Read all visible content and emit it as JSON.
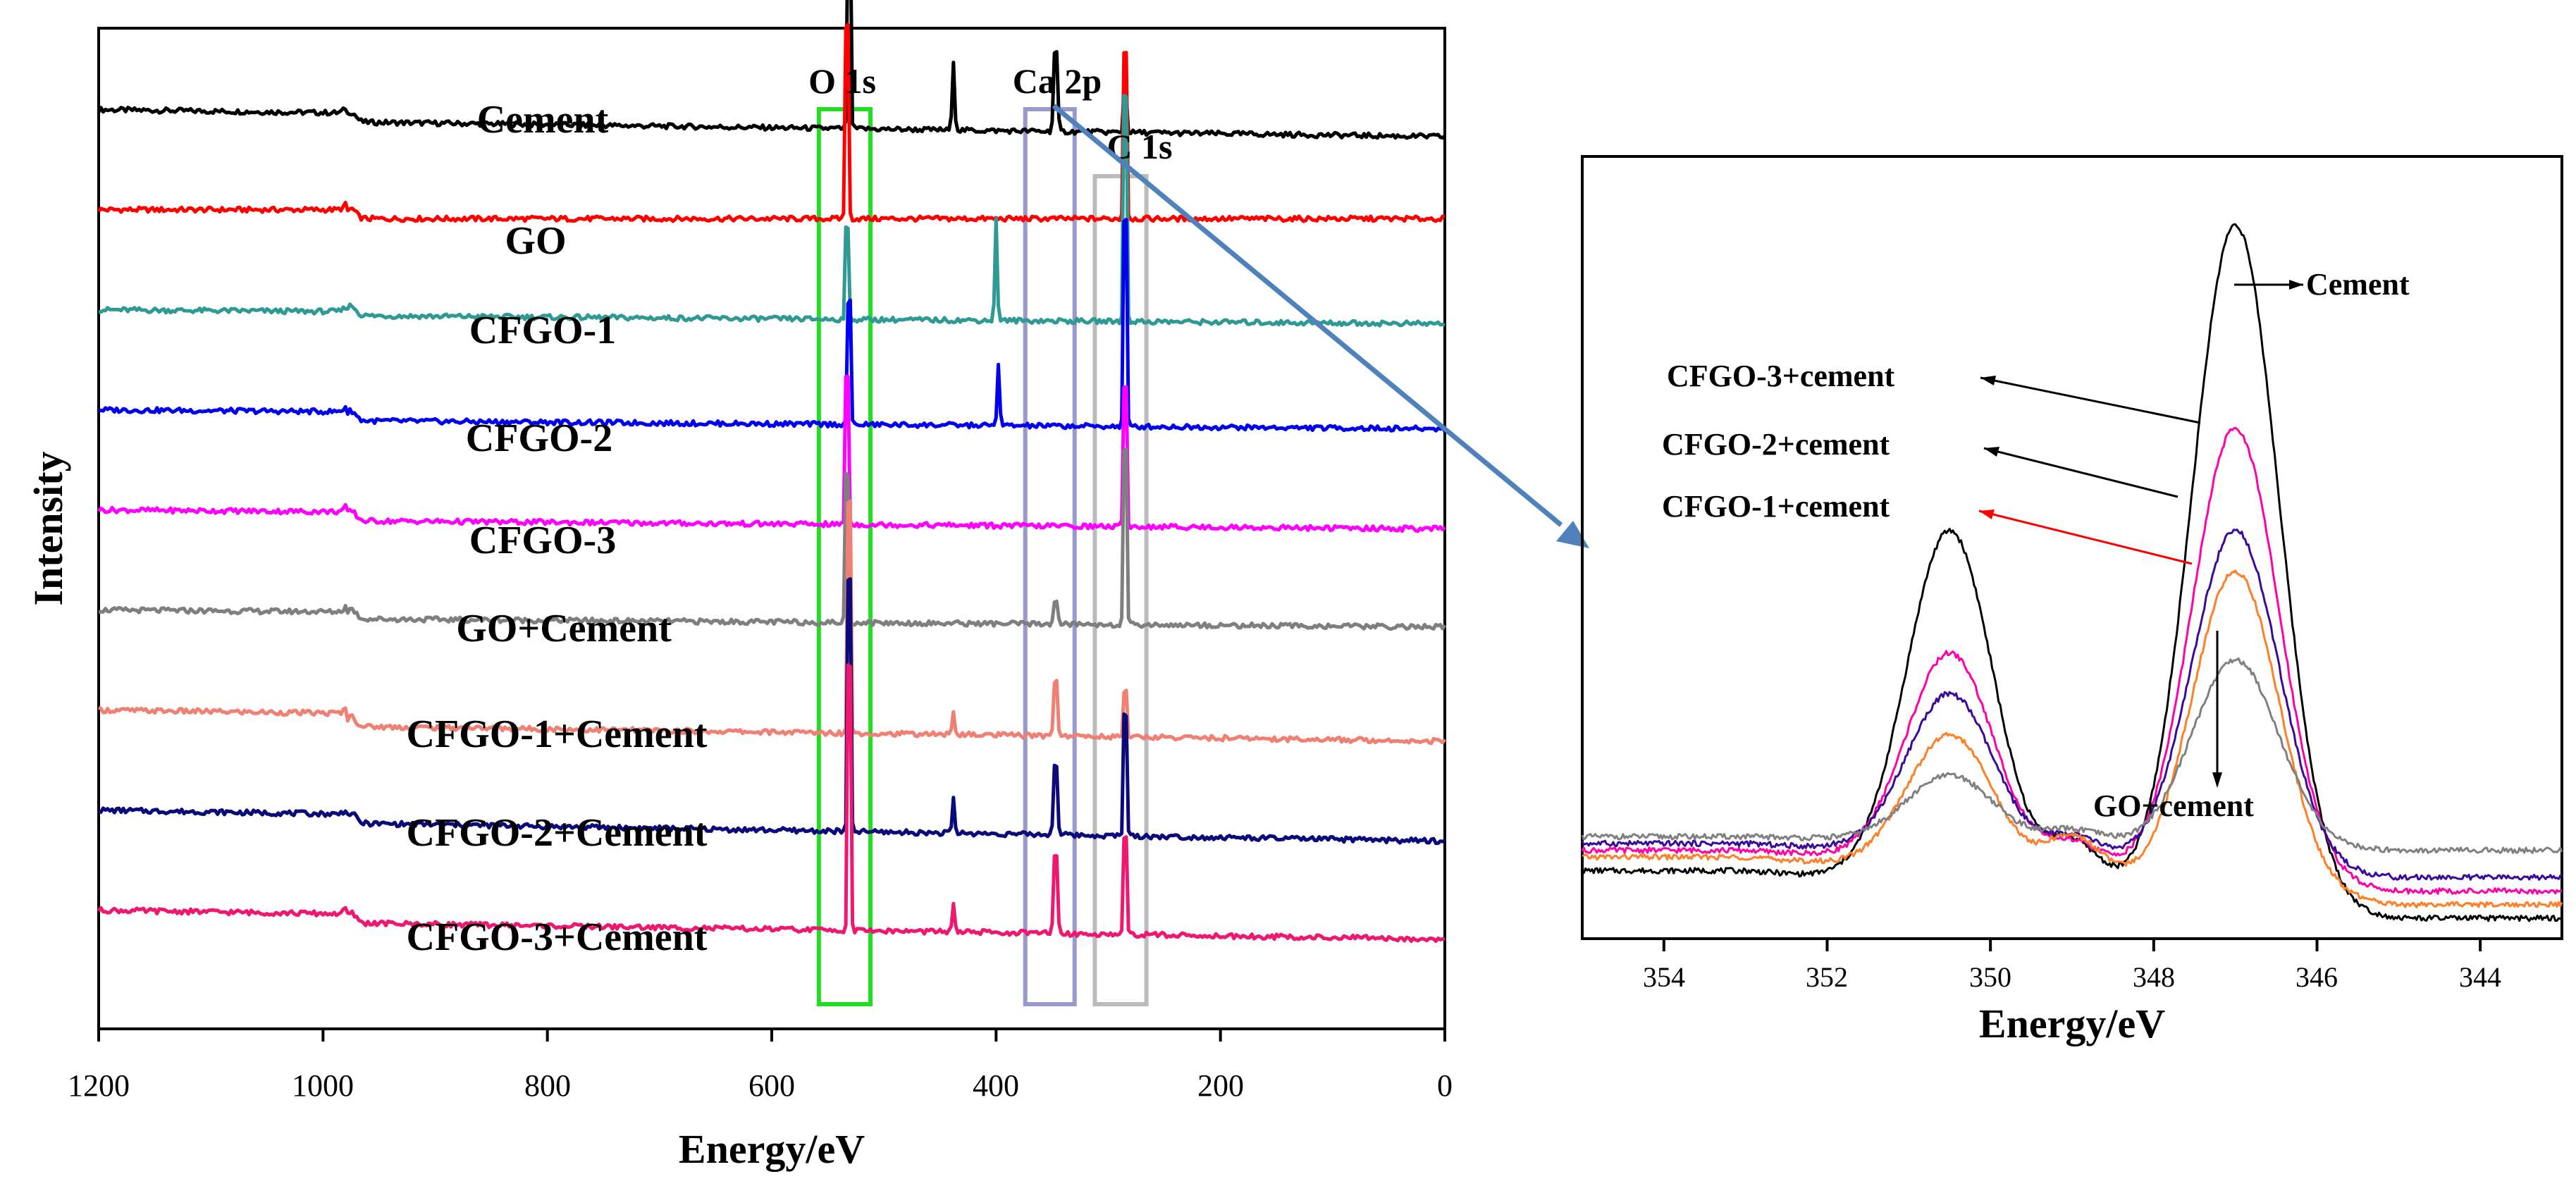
{
  "chart_data": [
    {
      "type": "line",
      "title": "",
      "xlabel": "Energy/eV",
      "ylabel": "Intensity",
      "xlim": [
        1200,
        0
      ],
      "x_ticks": [
        "1200",
        "1000",
        "800",
        "600",
        "400",
        "200",
        "0"
      ],
      "x_tick_values": [
        1200,
        1000,
        800,
        600,
        400,
        200,
        0
      ],
      "y_ticks_labeled": false,
      "peak_labels": [
        "O 1s",
        "Ca 2p",
        "C 1s"
      ],
      "highlight_boxes": [
        {
          "label": "O 1s",
          "range": [
            558,
            512
          ],
          "color": "#22dd22"
        },
        {
          "label": "Ca 2p",
          "range": [
            374,
            330
          ],
          "color": "#9999cc"
        },
        {
          "label": "C 1s",
          "range": [
            312,
            266
          ],
          "color": "#bbbbbb"
        }
      ],
      "series": [
        {
          "name": "Cement",
          "color": "#000000",
          "offset": 8,
          "slope": 0.18,
          "edge": 0.45,
          "peaks": [
            {
              "x": 531,
              "h": 3.2,
              "w": 1.5
            },
            {
              "x": 438,
              "h": 0.7,
              "w": 1.5
            },
            {
              "x": 347,
              "h": 1.0,
              "w": 2
            },
            {
              "x": 285,
              "h": 0.6,
              "w": 1.5
            }
          ]
        },
        {
          "name": "GO",
          "color": "#ff0000",
          "offset": 7,
          "slope": 0.0,
          "edge": 0.45,
          "peaks": [
            {
              "x": 533,
              "h": 3.0,
              "w": 1.5
            },
            {
              "x": 285,
              "h": 2.6,
              "w": 1.5
            }
          ]
        },
        {
          "name": "CFGO-1",
          "color": "#2f9a93",
          "offset": 6,
          "slope": 0.1,
          "edge": 0.2,
          "peaks": [
            {
              "x": 533,
              "h": 1.4,
              "w": 1.5
            },
            {
              "x": 400,
              "h": 1.0,
              "w": 1.5
            },
            {
              "x": 285,
              "h": 3.5,
              "w": 1.5
            }
          ]
        },
        {
          "name": "CFGO-2",
          "color": "#0000ee",
          "offset": 5,
          "slope": 0.1,
          "edge": 0.45,
          "peaks": [
            {
              "x": 531,
              "h": 1.9,
              "w": 1.5
            },
            {
              "x": 398,
              "h": 0.6,
              "w": 1.5
            },
            {
              "x": 285,
              "h": 3.2,
              "w": 1.5
            }
          ]
        },
        {
          "name": "CFGO-3",
          "color": "#ff00ff",
          "offset": 4,
          "slope": 0.1,
          "edge": 0.45,
          "peaks": [
            {
              "x": 533,
              "h": 2.3,
              "w": 1.5
            },
            {
              "x": 285,
              "h": 2.2,
              "w": 1.5
            }
          ]
        },
        {
          "name": "GO+Cement",
          "color": "#7f7f7f",
          "offset": 3,
          "slope": 0.1,
          "edge": 0.35,
          "peaks": [
            {
              "x": 533,
              "h": 2.3,
              "w": 1.5
            },
            {
              "x": 347,
              "h": 0.3,
              "w": 2
            },
            {
              "x": 285,
              "h": 2.7,
              "w": 1.5
            }
          ]
        },
        {
          "name": "CFGO-1+Cement",
          "color": "#f07f74",
          "offset": 2,
          "slope": 0.18,
          "edge": 0.65,
          "peaks": [
            {
              "x": 531,
              "h": 3.6,
              "w": 1.5
            },
            {
              "x": 438,
              "h": 0.25,
              "w": 1.5
            },
            {
              "x": 347,
              "h": 0.7,
              "w": 2
            },
            {
              "x": 285,
              "h": 0.7,
              "w": 1.5
            }
          ]
        },
        {
          "name": "CFGO-2+Cement",
          "color": "#0a0a7a",
          "offset": 1,
          "slope": 0.22,
          "edge": 0.45,
          "peaks": [
            {
              "x": 531,
              "h": 3.9,
              "w": 1.5
            },
            {
              "x": 438,
              "h": 0.35,
              "w": 1.5
            },
            {
              "x": 347,
              "h": 0.9,
              "w": 2
            },
            {
              "x": 285,
              "h": 1.9,
              "w": 1.5
            }
          ]
        },
        {
          "name": "CFGO-3+Cement",
          "color": "#ee1870",
          "offset": 0,
          "slope": 0.2,
          "edge": 0.45,
          "peaks": [
            {
              "x": 531,
              "h": 4.1,
              "w": 1.5
            },
            {
              "x": 438,
              "h": 0.3,
              "w": 1.5
            },
            {
              "x": 347,
              "h": 1.0,
              "w": 2
            },
            {
              "x": 285,
              "h": 1.5,
              "w": 1.5
            }
          ]
        }
      ]
    },
    {
      "type": "line",
      "title": "",
      "xlabel": "Energy/eV",
      "ylabel": "",
      "xlim": [
        355,
        343
      ],
      "ylim": [
        0,
        1.15
      ],
      "x_ticks": [
        "354",
        "352",
        "350",
        "348",
        "346",
        "344"
      ],
      "x_tick_values": [
        354,
        352,
        350,
        348,
        346,
        344
      ],
      "series": [
        {
          "name": "Cement",
          "label": "Cement",
          "color": "#000000",
          "peak1_height": 0.6,
          "peak2_height": 1.05,
          "left_base": 0.1,
          "valley": 0.14,
          "right_base": 0.03
        },
        {
          "name": "CFGO-3+cement",
          "label": "CFGO-3+cement",
          "color": "#ff00aa",
          "peak1_height": 0.42,
          "peak2_height": 0.75,
          "left_base": 0.13,
          "valley": 0.14,
          "right_base": 0.07
        },
        {
          "name": "CFGO-2+cement",
          "label": "CFGO-2+cement",
          "color": "#3a0a9a",
          "peak1_height": 0.36,
          "peak2_height": 0.6,
          "left_base": 0.14,
          "valley": 0.15,
          "right_base": 0.09
        },
        {
          "name": "CFGO-1+cement",
          "label": "CFGO-1+cement",
          "color": "#ff7f27",
          "peak1_height": 0.3,
          "peak2_height": 0.54,
          "left_base": 0.12,
          "valley": 0.15,
          "right_base": 0.05
        },
        {
          "name": "GO+cement",
          "label": "GO+cement",
          "color": "#808080",
          "peak1_height": 0.24,
          "peak2_height": 0.41,
          "left_base": 0.15,
          "valley": 0.16,
          "right_base": 0.13
        }
      ]
    }
  ]
}
